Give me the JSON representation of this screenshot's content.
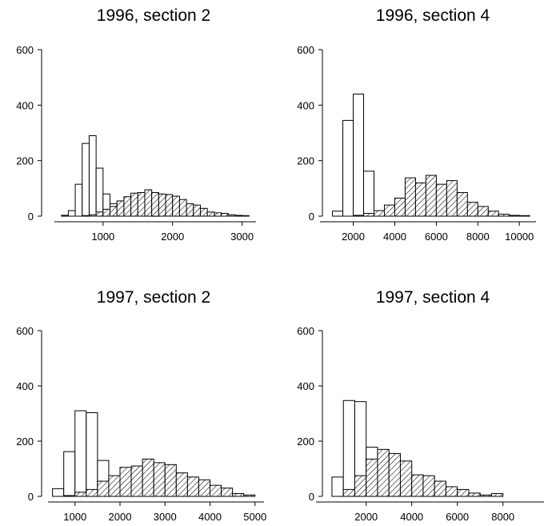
{
  "colors": {
    "open_bar": "#ffffff",
    "hatched_bar": "#d8d8d8",
    "stroke": "#000000"
  },
  "chart_data": [
    {
      "type": "bar",
      "title": "1996, section 2",
      "ylim": [
        0,
        600
      ],
      "yticks": [
        0,
        200,
        400,
        600
      ],
      "xticks": [
        1000,
        2000,
        3000
      ],
      "xlim": [
        300,
        3200
      ],
      "bin_width": 100,
      "series": [
        {
          "style": "open",
          "x": [
            400,
            500,
            600,
            700,
            800,
            900,
            1000,
            1100,
            1200,
            1300,
            1400,
            1500,
            1600,
            1700
          ],
          "values": [
            3,
            20,
            115,
            262,
            290,
            173,
            80,
            45,
            40,
            20,
            10,
            5,
            3,
            1
          ]
        },
        {
          "style": "hatched",
          "x": [
            700,
            800,
            900,
            1000,
            1100,
            1200,
            1300,
            1400,
            1500,
            1600,
            1700,
            1800,
            1900,
            2000,
            2100,
            2200,
            2300,
            2400,
            2500,
            2600,
            2700,
            2800,
            2900,
            3000
          ],
          "values": [
            2,
            5,
            15,
            25,
            35,
            55,
            70,
            83,
            85,
            95,
            85,
            80,
            78,
            72,
            60,
            45,
            40,
            28,
            15,
            12,
            10,
            5,
            3,
            2
          ]
        }
      ]
    },
    {
      "type": "bar",
      "title": "1996, section 4",
      "ylim": [
        0,
        600
      ],
      "yticks": [
        0,
        200,
        400,
        600
      ],
      "xticks": [
        2000,
        4000,
        6000,
        8000,
        10000
      ],
      "xlim": [
        400,
        10800
      ],
      "bin_width": 500,
      "series": [
        {
          "style": "open",
          "x": [
            1000,
            1500,
            2000,
            2500,
            3000
          ],
          "values": [
            18,
            345,
            440,
            162,
            15
          ]
        },
        {
          "style": "hatched",
          "x": [
            2000,
            2500,
            3000,
            3500,
            4000,
            4500,
            5000,
            5500,
            6000,
            6500,
            7000,
            7500,
            8000,
            8500,
            9000,
            9500,
            10000
          ],
          "values": [
            3,
            10,
            20,
            40,
            65,
            138,
            120,
            147,
            115,
            128,
            85,
            50,
            35,
            18,
            7,
            3,
            2
          ]
        }
      ]
    },
    {
      "type": "bar",
      "title": "1997, section 2",
      "ylim": [
        0,
        600
      ],
      "yticks": [
        0,
        200,
        400,
        600
      ],
      "xticks": [
        1000,
        2000,
        3000,
        4000,
        5000
      ],
      "xlim": [
        400,
        5200
      ],
      "bin_width": 250,
      "series": [
        {
          "style": "open",
          "x": [
            500,
            750,
            1000,
            1250,
            1500,
            1750,
            2000,
            2250
          ],
          "values": [
            28,
            162,
            310,
            303,
            130,
            60,
            30,
            5
          ]
        },
        {
          "style": "hatched",
          "x": [
            750,
            1000,
            1250,
            1500,
            1750,
            2000,
            2250,
            2500,
            2750,
            3000,
            3250,
            3500,
            3750,
            4000,
            4250,
            4500,
            4750
          ],
          "values": [
            3,
            15,
            25,
            55,
            75,
            105,
            110,
            135,
            122,
            115,
            85,
            70,
            60,
            40,
            30,
            10,
            5
          ]
        }
      ]
    },
    {
      "type": "bar",
      "title": "1997, section 4",
      "ylim": [
        0,
        600
      ],
      "yticks": [
        0,
        200,
        400,
        600
      ],
      "xticks": [
        2000,
        4000,
        6000,
        8000
      ],
      "xlim": [
        -200,
        9800
      ],
      "bin_width": 500,
      "series": [
        {
          "style": "open",
          "x": [
            500,
            1000,
            1500,
            2000,
            2500,
            3000,
            3500
          ],
          "values": [
            70,
            347,
            343,
            178,
            160,
            40,
            10
          ]
        },
        {
          "style": "hatched",
          "x": [
            1000,
            1500,
            2000,
            2500,
            3000,
            3500,
            4000,
            4500,
            5000,
            5500,
            6000,
            6500,
            7000,
            7500
          ],
          "values": [
            25,
            75,
            135,
            170,
            155,
            128,
            78,
            75,
            55,
            35,
            25,
            12,
            5,
            10
          ]
        }
      ]
    }
  ]
}
